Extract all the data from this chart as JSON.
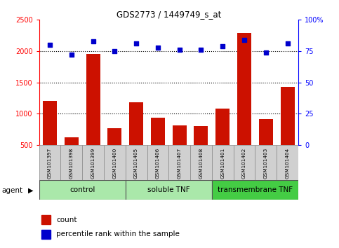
{
  "title": "GDS2773 / 1449749_s_at",
  "samples": [
    "GSM101397",
    "GSM101398",
    "GSM101399",
    "GSM101400",
    "GSM101405",
    "GSM101406",
    "GSM101407",
    "GSM101408",
    "GSM101401",
    "GSM101402",
    "GSM101403",
    "GSM101404"
  ],
  "counts": [
    1210,
    620,
    1960,
    770,
    1180,
    940,
    810,
    800,
    1080,
    2290,
    920,
    1430
  ],
  "percentiles": [
    80,
    72,
    83,
    75,
    81,
    78,
    76,
    76,
    79,
    84,
    74,
    81
  ],
  "groups": [
    {
      "label": "control",
      "start": 0,
      "end": 3,
      "color": "#aae8aa"
    },
    {
      "label": "soluble TNF",
      "start": 4,
      "end": 7,
      "color": "#aae8aa"
    },
    {
      "label": "transmembrane TNF",
      "start": 8,
      "end": 11,
      "color": "#44cc44"
    }
  ],
  "bar_color": "#cc1100",
  "dot_color": "#0000cc",
  "left_ylim": [
    500,
    2500
  ],
  "left_yticks": [
    500,
    1000,
    1500,
    2000,
    2500
  ],
  "right_ylim": [
    0,
    100
  ],
  "right_yticks": [
    0,
    25,
    50,
    75,
    100
  ],
  "grid_lines": [
    1000,
    1500,
    2000
  ],
  "legend_count_label": "count",
  "legend_percentile_label": "percentile rank within the sample",
  "sample_box_color": "#d0d0d0",
  "xlabel_agent": "agent"
}
